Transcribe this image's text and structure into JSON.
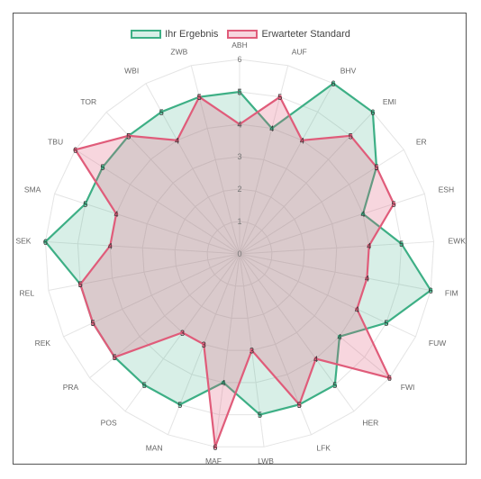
{
  "chart_data": {
    "type": "radar",
    "axes": [
      "ABH",
      "AUF",
      "BHV",
      "EMI",
      "ER",
      "ESH",
      "EWK",
      "FIM",
      "FUW",
      "FWI",
      "HER",
      "LFK",
      "LWB",
      "MAF",
      "MAN",
      "POS",
      "PRA",
      "REK",
      "REL",
      "SEK",
      "SMA",
      "TBU",
      "TOR",
      "WBI",
      "ZWB"
    ],
    "range": [
      0,
      6
    ],
    "ticks": [
      0,
      1,
      2,
      3,
      4,
      5,
      6
    ],
    "series": [
      {
        "name": "Ihr Ergebnis",
        "color": "#3daf85",
        "fill": "rgba(61,175,133,0.2)",
        "values": [
          5,
          4,
          6,
          6,
          5,
          4,
          5,
          6,
          5,
          4,
          5,
          5,
          5,
          4,
          5,
          5,
          5,
          5,
          5,
          6,
          5,
          5,
          5,
          5,
          5
        ]
      },
      {
        "name": "Erwarteter Standard",
        "color": "#e05c7a",
        "fill": "rgba(224,92,122,0.25)",
        "values": [
          4,
          5,
          4,
          5,
          5,
          5,
          4,
          4,
          4,
          6,
          4,
          5,
          3,
          6,
          3,
          3,
          5,
          5,
          5,
          4,
          4,
          6,
          5,
          4,
          5
        ]
      }
    ]
  }
}
